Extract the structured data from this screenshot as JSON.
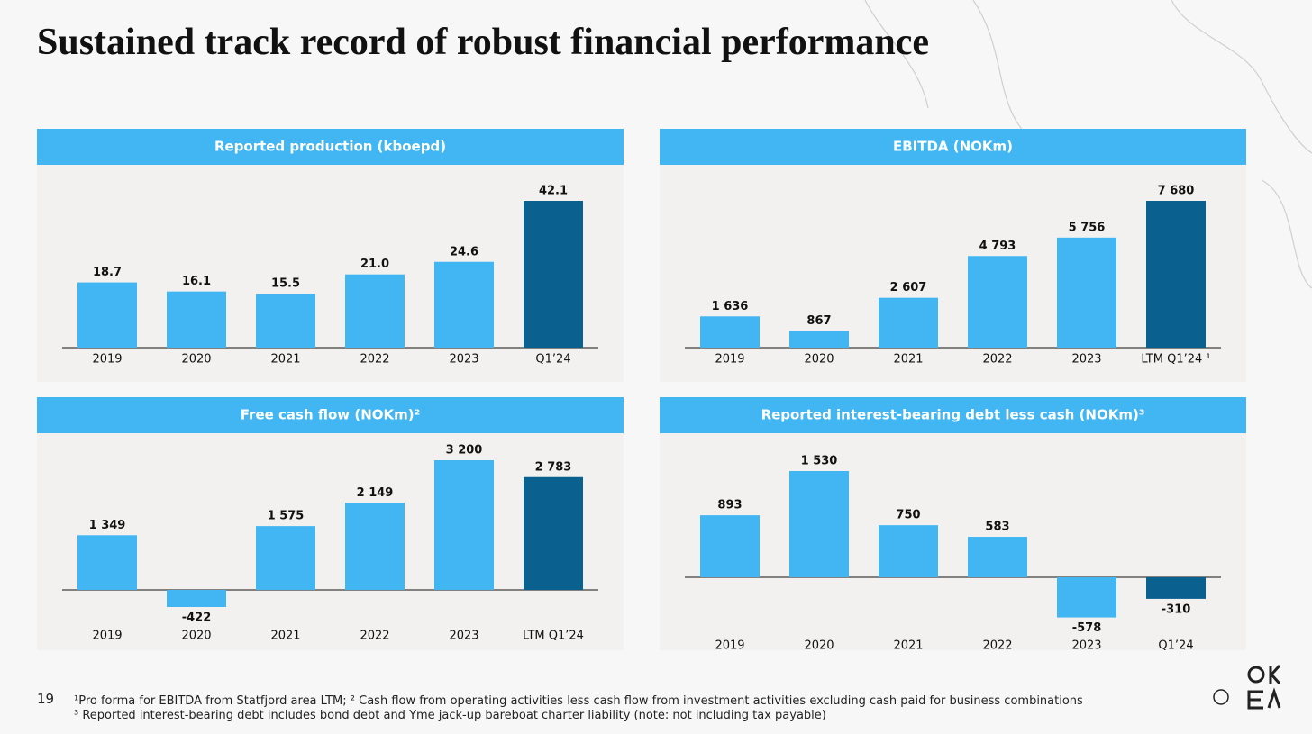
{
  "title": "Sustained track record of robust financial performance",
  "page_number": "19",
  "footnotes": [
    "¹Pro forma for EBITDA from Statfjord area LTM; ² Cash flow from operating activities less cash flow from investment activities excluding cash paid for business combinations",
    "³ Reported interest-bearing debt includes bond debt and Yme jack-up bareboat charter liability (note: not including tax payable)"
  ],
  "chart_data": [
    {
      "type": "bar",
      "title": "Reported production (kboepd)",
      "categories": [
        "2019",
        "2020",
        "2021",
        "2022",
        "2023",
        "Q1’24"
      ],
      "values": [
        18.7,
        16.1,
        15.5,
        21.0,
        24.6,
        42.1
      ],
      "value_labels": [
        "18.7",
        "16.1",
        "15.5",
        "21.0",
        "24.6",
        "42.1"
      ],
      "colors": [
        "#41b6f2",
        "#41b6f2",
        "#41b6f2",
        "#41b6f2",
        "#41b6f2",
        "#0a6190"
      ]
    },
    {
      "type": "bar",
      "title": "EBITDA (NOKm)",
      "categories": [
        "2019",
        "2020",
        "2021",
        "2022",
        "2023",
        "LTM Q1’24 ¹"
      ],
      "values": [
        1636,
        867,
        2607,
        4793,
        5756,
        7680
      ],
      "value_labels": [
        "1 636",
        "867",
        "2 607",
        "4 793",
        "5 756",
        "7 680"
      ],
      "colors": [
        "#41b6f2",
        "#41b6f2",
        "#41b6f2",
        "#41b6f2",
        "#41b6f2",
        "#0a6190"
      ]
    },
    {
      "type": "bar",
      "title": "Free cash flow (NOKm)²",
      "categories": [
        "2019",
        "2020",
        "2021",
        "2022",
        "2023",
        "LTM Q1’24"
      ],
      "values": [
        1349,
        -422,
        1575,
        2149,
        3200,
        2783
      ],
      "value_labels": [
        "1 349",
        "-422",
        "1 575",
        "2 149",
        "3 200",
        "2 783"
      ],
      "colors": [
        "#41b6f2",
        "#41b6f2",
        "#41b6f2",
        "#41b6f2",
        "#41b6f2",
        "#0a6190"
      ]
    },
    {
      "type": "bar",
      "title": "Reported interest-bearing debt less cash (NOKm)³",
      "categories": [
        "2019",
        "2020",
        "2021",
        "2022",
        "2023",
        "Q1’24"
      ],
      "values": [
        893,
        1530,
        750,
        583,
        -578,
        -310
      ],
      "value_labels": [
        "893",
        "1 530",
        "750",
        "583",
        "-578",
        "-310"
      ],
      "colors": [
        "#41b6f2",
        "#41b6f2",
        "#41b6f2",
        "#41b6f2",
        "#41b6f2",
        "#0a6190"
      ]
    }
  ]
}
